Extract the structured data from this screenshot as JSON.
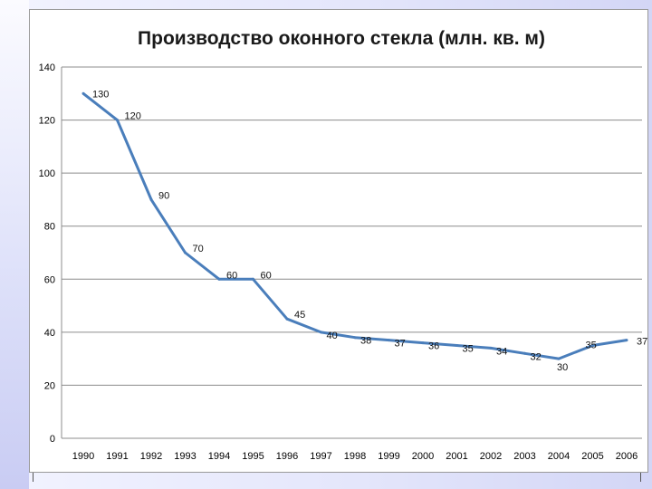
{
  "chart_data": {
    "type": "line",
    "title": "Производство оконного стекла (млн. кв. м)",
    "xlabel": "",
    "ylabel": "",
    "ylim": [
      0,
      140
    ],
    "yticks": [
      0,
      20,
      40,
      60,
      80,
      100,
      120,
      140
    ],
    "grid": true,
    "legend": "none",
    "color": "#4a7ebb",
    "categories": [
      "1990",
      "1991",
      "1992",
      "1993",
      "1994",
      "1995",
      "1996",
      "1997",
      "1998",
      "1999",
      "2000",
      "2001",
      "2002",
      "2003",
      "2004",
      "2005",
      "2006"
    ],
    "series": [
      {
        "values": [
          130,
          120,
          90,
          70,
          60,
          60,
          45,
          40,
          38,
          37,
          36,
          35,
          34,
          32,
          30,
          35,
          37
        ],
        "labels": [
          "130",
          "120",
          "90",
          "70",
          "60",
          "60",
          "45",
          "40",
          "38",
          "37",
          "36",
          "35",
          "34",
          "32",
          "30",
          "35",
          "37"
        ]
      }
    ]
  }
}
